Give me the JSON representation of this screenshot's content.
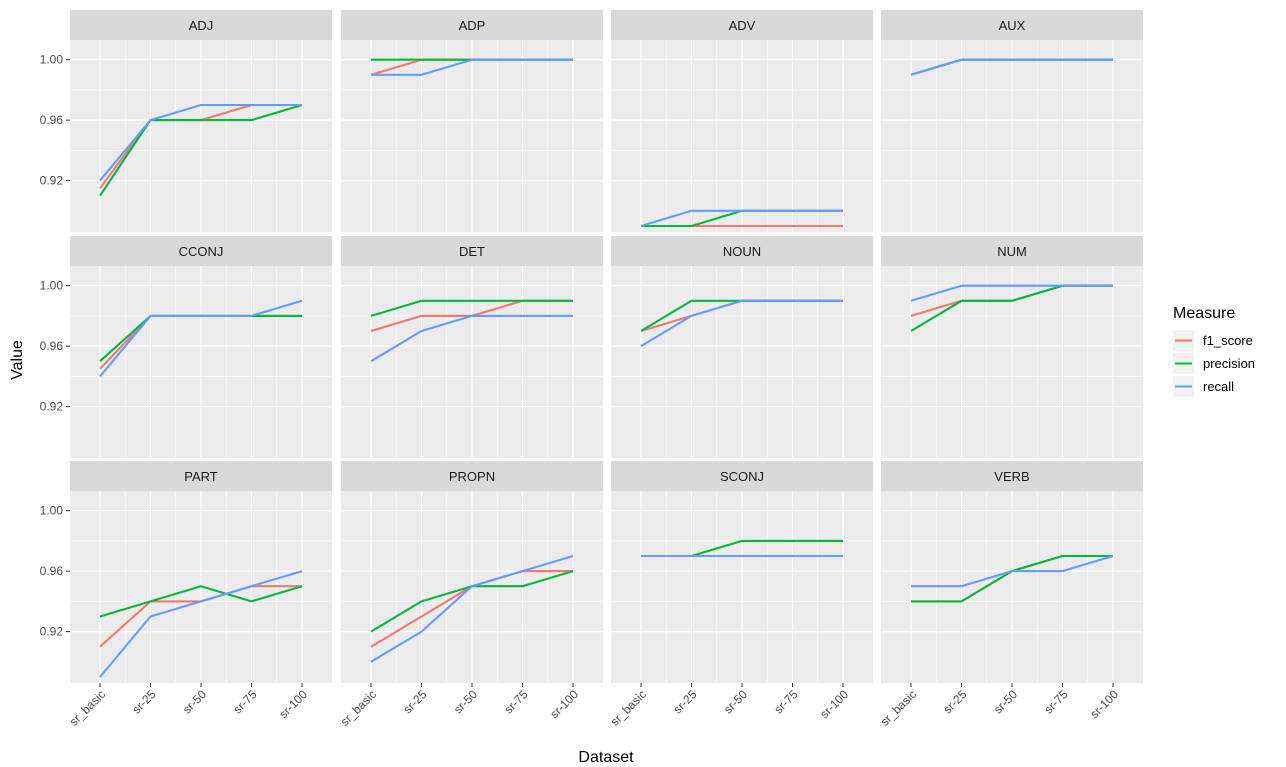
{
  "chart_data": {
    "type": "line",
    "facets": [
      "ADJ",
      "ADP",
      "ADV",
      "AUX",
      "CCONJ",
      "DET",
      "NOUN",
      "NUM",
      "PART",
      "PROPN",
      "SCONJ",
      "VERB"
    ],
    "x": [
      "sr_basic",
      "sr-25",
      "sr-50",
      "sr-75",
      "sr-100"
    ],
    "xlabel": "Dataset",
    "ylabel": "Value",
    "ylim": [
      0.886,
      1.013
    ],
    "yticks": [
      0.92,
      0.96,
      1.0
    ],
    "ytick_labels": [
      "0.92",
      "0.96",
      "1.00"
    ],
    "grid": true,
    "legend": {
      "title": "Measure",
      "position": "right",
      "entries": [
        {
          "name": "f1_score",
          "color": "#F8766D"
        },
        {
          "name": "precision",
          "color": "#00BA38"
        },
        {
          "name": "recall",
          "color": "#619CFF"
        }
      ]
    },
    "panels": [
      {
        "facet": "ADJ",
        "series": [
          {
            "name": "f1_score",
            "values": [
              0.915,
              0.96,
              0.96,
              0.97,
              0.97
            ]
          },
          {
            "name": "precision",
            "values": [
              0.91,
              0.96,
              0.96,
              0.96,
              0.97
            ]
          },
          {
            "name": "recall",
            "values": [
              0.92,
              0.96,
              0.97,
              0.97,
              0.97
            ]
          }
        ]
      },
      {
        "facet": "ADP",
        "series": [
          {
            "name": "f1_score",
            "values": [
              0.99,
              1.0,
              1.0,
              1.0,
              1.0
            ]
          },
          {
            "name": "precision",
            "values": [
              1.0,
              1.0,
              1.0,
              1.0,
              1.0
            ]
          },
          {
            "name": "recall",
            "values": [
              0.99,
              0.99,
              1.0,
              1.0,
              1.0
            ]
          }
        ]
      },
      {
        "facet": "ADV",
        "series": [
          {
            "name": "f1_score",
            "values": [
              0.89,
              0.89,
              0.89,
              0.89,
              0.89
            ]
          },
          {
            "name": "precision",
            "values": [
              0.89,
              0.89,
              0.9,
              0.9,
              0.9
            ]
          },
          {
            "name": "recall",
            "values": [
              0.89,
              0.9,
              0.9,
              0.9,
              0.9
            ]
          }
        ]
      },
      {
        "facet": "AUX",
        "series": [
          {
            "name": "f1_score",
            "values": [
              0.99,
              1.0,
              1.0,
              1.0,
              1.0
            ]
          },
          {
            "name": "precision",
            "values": [
              0.99,
              1.0,
              1.0,
              1.0,
              1.0
            ]
          },
          {
            "name": "recall",
            "values": [
              0.99,
              1.0,
              1.0,
              1.0,
              1.0
            ]
          }
        ]
      },
      {
        "facet": "CCONJ",
        "series": [
          {
            "name": "f1_score",
            "values": [
              0.945,
              0.98,
              0.98,
              0.98,
              0.98
            ]
          },
          {
            "name": "precision",
            "values": [
              0.95,
              0.98,
              0.98,
              0.98,
              0.98
            ]
          },
          {
            "name": "recall",
            "values": [
              0.94,
              0.98,
              0.98,
              0.98,
              0.99
            ]
          }
        ]
      },
      {
        "facet": "DET",
        "series": [
          {
            "name": "f1_score",
            "values": [
              0.97,
              0.98,
              0.98,
              0.99,
              0.99
            ]
          },
          {
            "name": "precision",
            "values": [
              0.98,
              0.99,
              0.99,
              0.99,
              0.99
            ]
          },
          {
            "name": "recall",
            "values": [
              0.95,
              0.97,
              0.98,
              0.98,
              0.98
            ]
          }
        ]
      },
      {
        "facet": "NOUN",
        "series": [
          {
            "name": "f1_score",
            "values": [
              0.97,
              0.98,
              0.99,
              0.99,
              0.99
            ]
          },
          {
            "name": "precision",
            "values": [
              0.97,
              0.99,
              0.99,
              0.99,
              0.99
            ]
          },
          {
            "name": "recall",
            "values": [
              0.96,
              0.98,
              0.99,
              0.99,
              0.99
            ]
          }
        ]
      },
      {
        "facet": "NUM",
        "series": [
          {
            "name": "f1_score",
            "values": [
              0.98,
              0.99,
              0.99,
              1.0,
              1.0
            ]
          },
          {
            "name": "precision",
            "values": [
              0.97,
              0.99,
              0.99,
              1.0,
              1.0
            ]
          },
          {
            "name": "recall",
            "values": [
              0.99,
              1.0,
              1.0,
              1.0,
              1.0
            ]
          }
        ]
      },
      {
        "facet": "PART",
        "series": [
          {
            "name": "f1_score",
            "values": [
              0.91,
              0.94,
              0.94,
              0.95,
              0.95
            ]
          },
          {
            "name": "precision",
            "values": [
              0.93,
              0.94,
              0.95,
              0.94,
              0.95
            ]
          },
          {
            "name": "recall",
            "values": [
              0.89,
              0.93,
              0.94,
              0.95,
              0.96
            ]
          }
        ]
      },
      {
        "facet": "PROPN",
        "series": [
          {
            "name": "f1_score",
            "values": [
              0.91,
              0.93,
              0.95,
              0.96,
              0.96
            ]
          },
          {
            "name": "precision",
            "values": [
              0.92,
              0.94,
              0.95,
              0.95,
              0.96
            ]
          },
          {
            "name": "recall",
            "values": [
              0.9,
              0.92,
              0.95,
              0.96,
              0.97
            ]
          }
        ]
      },
      {
        "facet": "SCONJ",
        "series": [
          {
            "name": "f1_score",
            "values": [
              0.97,
              0.97,
              0.97,
              0.97,
              0.97
            ]
          },
          {
            "name": "precision",
            "values": [
              0.97,
              0.97,
              0.98,
              0.98,
              0.98
            ]
          },
          {
            "name": "recall",
            "values": [
              0.97,
              0.97,
              0.97,
              0.97,
              0.97
            ]
          }
        ]
      },
      {
        "facet": "VERB",
        "series": [
          {
            "name": "f1_score",
            "values": [
              0.94,
              0.94,
              0.96,
              0.97,
              0.97
            ]
          },
          {
            "name": "precision",
            "values": [
              0.94,
              0.94,
              0.96,
              0.97,
              0.97
            ]
          },
          {
            "name": "recall",
            "values": [
              0.95,
              0.95,
              0.96,
              0.96,
              0.97
            ]
          }
        ]
      }
    ]
  }
}
